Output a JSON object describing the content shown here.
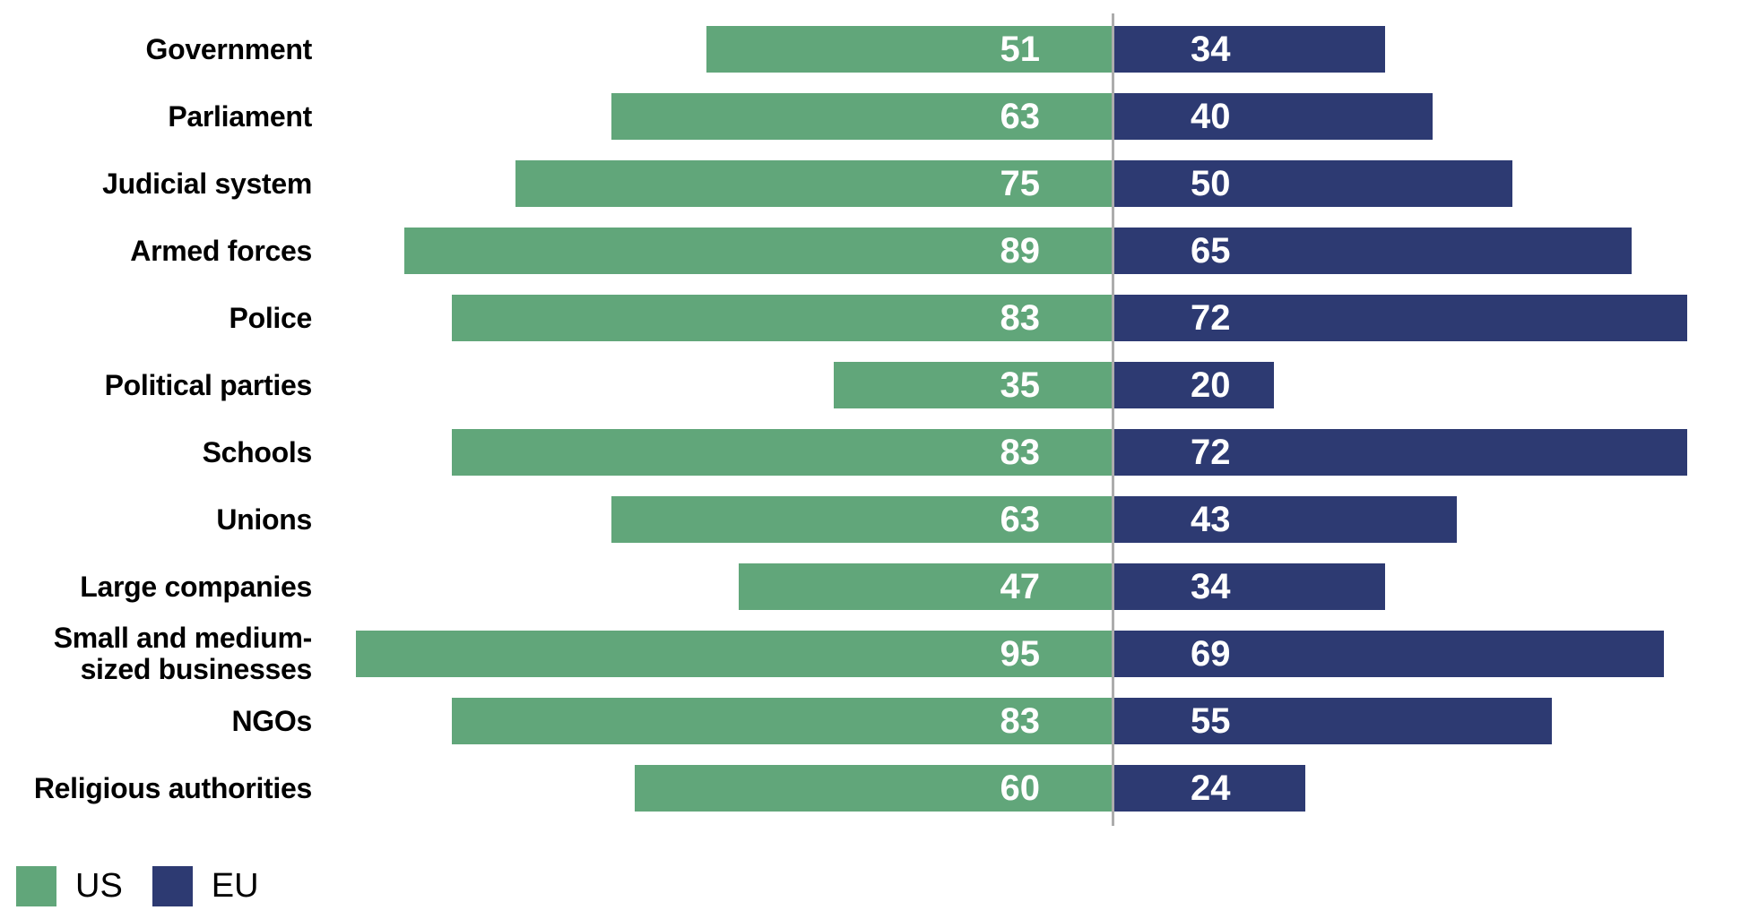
{
  "chart_data": {
    "type": "bar",
    "variant": "diverging-horizontal-pyramid",
    "title": "",
    "categories": [
      "Government",
      "Parliament",
      "Judicial system",
      "Armed forces",
      "Police",
      "Political parties",
      "Schools",
      "Unions",
      "Large companies",
      "Small and medium-\nsized businesses",
      "NGOs",
      "Religious authorities"
    ],
    "series": [
      {
        "name": "US",
        "color": "#61A67A",
        "values": [
          51,
          63,
          75,
          89,
          83,
          35,
          83,
          63,
          47,
          95,
          83,
          60
        ]
      },
      {
        "name": "EU",
        "color": "#2D3A72",
        "values": [
          34,
          40,
          50,
          65,
          72,
          20,
          72,
          43,
          34,
          69,
          55,
          24
        ]
      }
    ],
    "value_labels_shown": true,
    "value_label_color": "#FFFFFF",
    "axis": {
      "center_divider": true,
      "divider_color": "#ACACAC",
      "xlim_each_side": [
        0,
        100
      ],
      "grid": false,
      "tick_labels": []
    },
    "legend": {
      "position": "bottom-left",
      "items": [
        {
          "label": "US",
          "color": "#61A67A"
        },
        {
          "label": "EU",
          "color": "#2D3A72"
        }
      ]
    }
  }
}
